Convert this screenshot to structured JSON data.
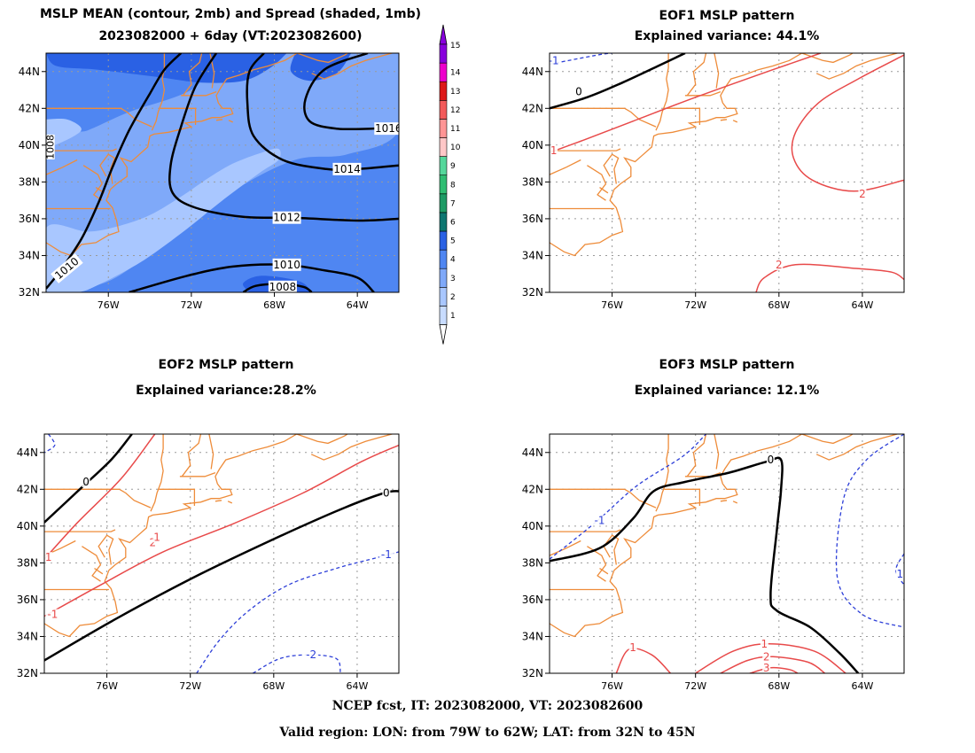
{
  "footer": {
    "line1": "NCEP fcst, IT: 2023082000, VT: 2023082600",
    "line2": "Valid region: LON: from 79W to 62W; LAT: from 32N to 45N"
  },
  "panels": [
    {
      "id": "mean",
      "title1": "MSLP MEAN (contour, 2mb) and Spread (shaded, 1mb)",
      "title2": "2023082000 + 6day (VT:2023082600)"
    },
    {
      "id": "eof1",
      "title1": "EOF1 MSLP pattern",
      "title2": "Explained variance: 44.1%"
    },
    {
      "id": "eof2",
      "title1": "EOF2 MSLP pattern",
      "title2": "Explained variance:28.2%"
    },
    {
      "id": "eof3",
      "title1": "EOF3 MSLP pattern",
      "title2": "Explained variance: 12.1%"
    }
  ],
  "map_axes": {
    "lon_ticks": [
      "76W",
      "72W",
      "68W",
      "64W"
    ],
    "lat_ticks": [
      "44N",
      "42N",
      "40N",
      "38N",
      "36N",
      "34N",
      "32N"
    ],
    "lon_range": [
      -79,
      -62
    ],
    "lat_range": [
      32,
      45
    ]
  },
  "colorbar": {
    "labels": [
      "1",
      "2",
      "3",
      "4",
      "5",
      "6",
      "7",
      "8",
      "9",
      "10",
      "11",
      "12",
      "13",
      "14",
      "15"
    ],
    "colors": [
      "#c8dcff",
      "#a9c7ff",
      "#7fa9f9",
      "#4f86f2",
      "#2a61e4",
      "#0d7670",
      "#1e9b65",
      "#2fbd72",
      "#55d79b",
      "#ffc7c7",
      "#ff9595",
      "#f35a5a",
      "#dd1818",
      "#ee00cc",
      "#8800dd"
    ],
    "under_color": "#ffffff",
    "over_color": "#8800dd"
  },
  "mean_contour_labels": [
    "1008",
    "1010",
    "1012",
    "1014",
    "1016",
    "1008",
    "1010"
  ],
  "eof1_labels": [
    "-1",
    "0",
    "1",
    "2",
    "2"
  ],
  "eof2_labels": [
    "0",
    "2",
    "1",
    "-1",
    "-1",
    "0",
    "1",
    "-2"
  ],
  "eof3_labels": [
    "-1",
    "0",
    "1",
    "1",
    "2",
    "3",
    "1"
  ],
  "colors": {
    "coast": "#ee8c3a",
    "positive": "#e84a4a",
    "negative": "#2d3fd8",
    "zero": "#000000",
    "grid": "#9a9a9a"
  }
}
